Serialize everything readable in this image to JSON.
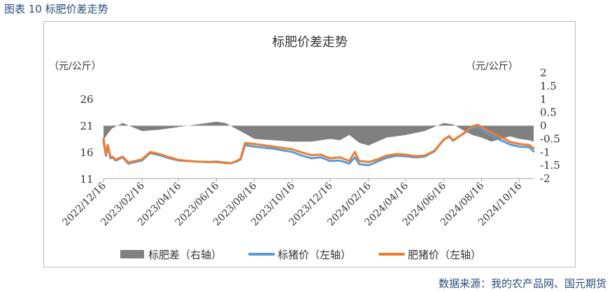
{
  "figure_caption": "图表 10  标肥价差走势",
  "source_note": "数据来源：我的农产品网、国元期货",
  "chart_data": {
    "type": "line",
    "title": "标肥价差走势",
    "left_unit": "（元/公斤）",
    "right_unit": "（元/公斤）",
    "y_left": {
      "ticks": [
        "11",
        "16",
        "21",
        "26"
      ],
      "ylim": [
        11,
        26
      ]
    },
    "y_right": {
      "ticks": [
        "-2",
        "-1.5",
        "-1",
        "-0.5",
        "0",
        "0.5",
        "1",
        "1.5",
        "2"
      ],
      "ylim": [
        -2,
        2
      ]
    },
    "x_ticks": [
      "2022/12/16",
      "2023/02/16",
      "2023/04/16",
      "2023/06/16",
      "2023/08/16",
      "2023/10/16",
      "2023/12/16",
      "2024/02/16",
      "2024/04/16",
      "2024/06/16",
      "2024/08/16",
      "2024/10/16"
    ],
    "legend": [
      "标肥差（右轴）",
      "标猪价（左轴）",
      "肥猪价（左轴）"
    ],
    "colors": {
      "spread": "#808080",
      "standard": "#5b9bd5",
      "fat": "#ed7d31"
    },
    "series": [
      {
        "name": "标肥差（右轴）",
        "axis": "right",
        "kind": "area",
        "x": [
          "2022/12/16",
          "2022/12/23",
          "2022/12/30",
          "2023/01/16",
          "2023/02/16",
          "2023/03/16",
          "2023/04/16",
          "2023/05/16",
          "2023/06/16",
          "2023/07/01",
          "2023/07/16",
          "2023/08/01",
          "2023/08/16",
          "2023/09/16",
          "2023/10/16",
          "2023/11/16",
          "2023/12/16",
          "2024/01/01",
          "2024/01/16",
          "2024/02/01",
          "2024/02/16",
          "2024/03/01",
          "2024/03/16",
          "2024/04/16",
          "2024/05/16",
          "2024/06/01",
          "2024/06/16",
          "2024/07/01",
          "2024/07/16",
          "2024/08/01",
          "2024/08/16",
          "2024/09/01",
          "2024/09/16",
          "2024/10/01",
          "2024/10/16",
          "2024/11/01",
          "2024/11/08"
        ],
        "values": [
          -0.55,
          -0.3,
          -0.1,
          0.1,
          -0.2,
          -0.15,
          -0.05,
          0.05,
          0.15,
          0.1,
          -0.1,
          -0.3,
          -0.5,
          -0.55,
          -0.6,
          -0.6,
          -0.5,
          -0.55,
          -0.35,
          -0.65,
          -0.75,
          -0.6,
          -0.45,
          -0.35,
          -0.2,
          -0.05,
          0.1,
          0.05,
          -0.15,
          -0.35,
          -0.45,
          -0.6,
          -0.5,
          -0.4,
          -0.5,
          -0.55,
          -0.6
        ]
      },
      {
        "name": "标猪价（左轴）",
        "axis": "left",
        "kind": "line",
        "x": [
          "2022/12/16",
          "2022/12/20",
          "2022/12/23",
          "2022/12/27",
          "2022/12/30",
          "2023/01/05",
          "2023/01/16",
          "2023/01/25",
          "2023/02/16",
          "2023/03/01",
          "2023/03/16",
          "2023/04/01",
          "2023/04/16",
          "2023/05/01",
          "2023/05/16",
          "2023/06/01",
          "2023/06/16",
          "2023/07/01",
          "2023/07/10",
          "2023/07/20",
          "2023/07/25",
          "2023/08/01",
          "2023/08/16",
          "2023/09/16",
          "2023/10/16",
          "2023/11/01",
          "2023/11/16",
          "2023/12/01",
          "2023/12/16",
          "2024/01/01",
          "2024/01/16",
          "2024/01/25",
          "2024/02/01",
          "2024/02/16",
          "2024/03/01",
          "2024/03/16",
          "2024/04/01",
          "2024/04/16",
          "2024/05/01",
          "2024/05/16",
          "2024/06/01",
          "2024/06/16",
          "2024/06/25",
          "2024/07/01",
          "2024/07/16",
          "2024/08/01",
          "2024/08/10",
          "2024/08/16",
          "2024/09/01",
          "2024/09/16",
          "2024/10/01",
          "2024/10/16",
          "2024/11/01",
          "2024/11/08"
        ],
        "values": [
          18.0,
          15.3,
          17.2,
          14.8,
          15.0,
          14.4,
          15.0,
          13.8,
          14.4,
          15.8,
          15.4,
          14.8,
          14.4,
          14.3,
          14.2,
          14.1,
          14.2,
          14.0,
          13.9,
          14.3,
          14.6,
          17.3,
          17.0,
          16.6,
          16.0,
          15.3,
          14.8,
          15.0,
          14.3,
          14.4,
          13.8,
          15.0,
          13.7,
          13.5,
          14.2,
          14.9,
          15.3,
          15.2,
          15.0,
          15.1,
          16.1,
          18.3,
          18.9,
          18.1,
          19.3,
          20.5,
          20.7,
          20.3,
          19.0,
          18.2,
          17.4,
          17.0,
          16.9,
          16.1
        ]
      },
      {
        "name": "肥猪价（左轴）",
        "axis": "left",
        "kind": "line",
        "x": [
          "2022/12/16",
          "2022/12/20",
          "2022/12/23",
          "2022/12/27",
          "2022/12/30",
          "2023/01/05",
          "2023/01/16",
          "2023/01/25",
          "2023/02/16",
          "2023/03/01",
          "2023/03/16",
          "2023/04/01",
          "2023/04/16",
          "2023/05/01",
          "2023/05/16",
          "2023/06/01",
          "2023/06/16",
          "2023/07/01",
          "2023/07/10",
          "2023/07/20",
          "2023/07/25",
          "2023/08/01",
          "2023/08/16",
          "2023/09/16",
          "2023/10/16",
          "2023/11/01",
          "2023/11/16",
          "2023/12/01",
          "2023/12/16",
          "2024/01/01",
          "2024/01/16",
          "2024/01/25",
          "2024/02/01",
          "2024/02/16",
          "2024/03/01",
          "2024/03/16",
          "2024/04/01",
          "2024/04/16",
          "2024/05/01",
          "2024/05/16",
          "2024/06/01",
          "2024/06/16",
          "2024/06/25",
          "2024/07/01",
          "2024/07/16",
          "2024/08/01",
          "2024/08/10",
          "2024/08/16",
          "2024/09/01",
          "2024/09/16",
          "2024/10/01",
          "2024/10/16",
          "2024/11/01",
          "2024/11/08"
        ],
        "values": [
          18.5,
          15.6,
          17.3,
          15.0,
          15.1,
          14.6,
          15.1,
          14.0,
          14.6,
          16.0,
          15.6,
          15.0,
          14.5,
          14.3,
          14.2,
          14.1,
          14.1,
          13.9,
          13.9,
          14.4,
          14.8,
          17.7,
          17.5,
          17.0,
          16.5,
          15.9,
          15.4,
          15.5,
          14.8,
          15.0,
          14.3,
          16.0,
          14.3,
          14.1,
          14.6,
          15.3,
          15.6,
          15.5,
          15.2,
          15.3,
          16.2,
          18.3,
          19.0,
          18.2,
          19.3,
          20.8,
          21.1,
          20.7,
          19.6,
          18.8,
          17.9,
          17.5,
          17.3,
          16.7
        ]
      }
    ]
  }
}
